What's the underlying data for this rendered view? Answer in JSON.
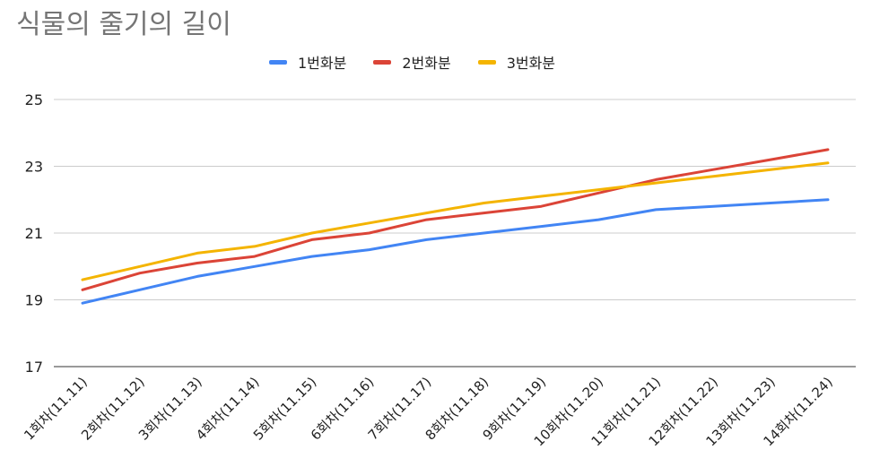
{
  "chart_data": {
    "type": "line",
    "title": "식물의 줄기의 길이",
    "xlabel": "",
    "ylabel": "",
    "categories": [
      "1회차(11.11)",
      "2회차(11.12)",
      "3회차(11.13)",
      "4회차(11.14)",
      "5회차(11.15)",
      "6회차(11.16)",
      "7회차(11.17)",
      "8회차(11.18)",
      "9회차(11.19)",
      "10회차(11.20)",
      "11회차(11.21)",
      "12회차(11.22)",
      "13회차(11.23)",
      "14회차(11.24)"
    ],
    "series": [
      {
        "name": "1번화분",
        "color": "#4285F4",
        "values": [
          18.9,
          19.3,
          19.7,
          20.0,
          20.3,
          20.5,
          20.8,
          21.0,
          21.2,
          21.4,
          21.7,
          21.8,
          21.9,
          22.0
        ]
      },
      {
        "name": "2번화분",
        "color": "#DB4437",
        "values": [
          19.3,
          19.8,
          20.1,
          20.3,
          20.8,
          21.0,
          21.4,
          21.6,
          21.8,
          22.2,
          22.6,
          22.9,
          23.2,
          23.5
        ]
      },
      {
        "name": "3번화분",
        "color": "#F4B400",
        "values": [
          19.6,
          20.0,
          20.4,
          20.6,
          21.0,
          21.3,
          21.6,
          21.9,
          22.1,
          22.3,
          22.5,
          22.7,
          22.9,
          23.1
        ]
      }
    ],
    "ylim": [
      17,
      25
    ],
    "yticks": [
      17,
      19,
      21,
      23,
      25
    ],
    "grid": true,
    "legend_position": "top"
  }
}
